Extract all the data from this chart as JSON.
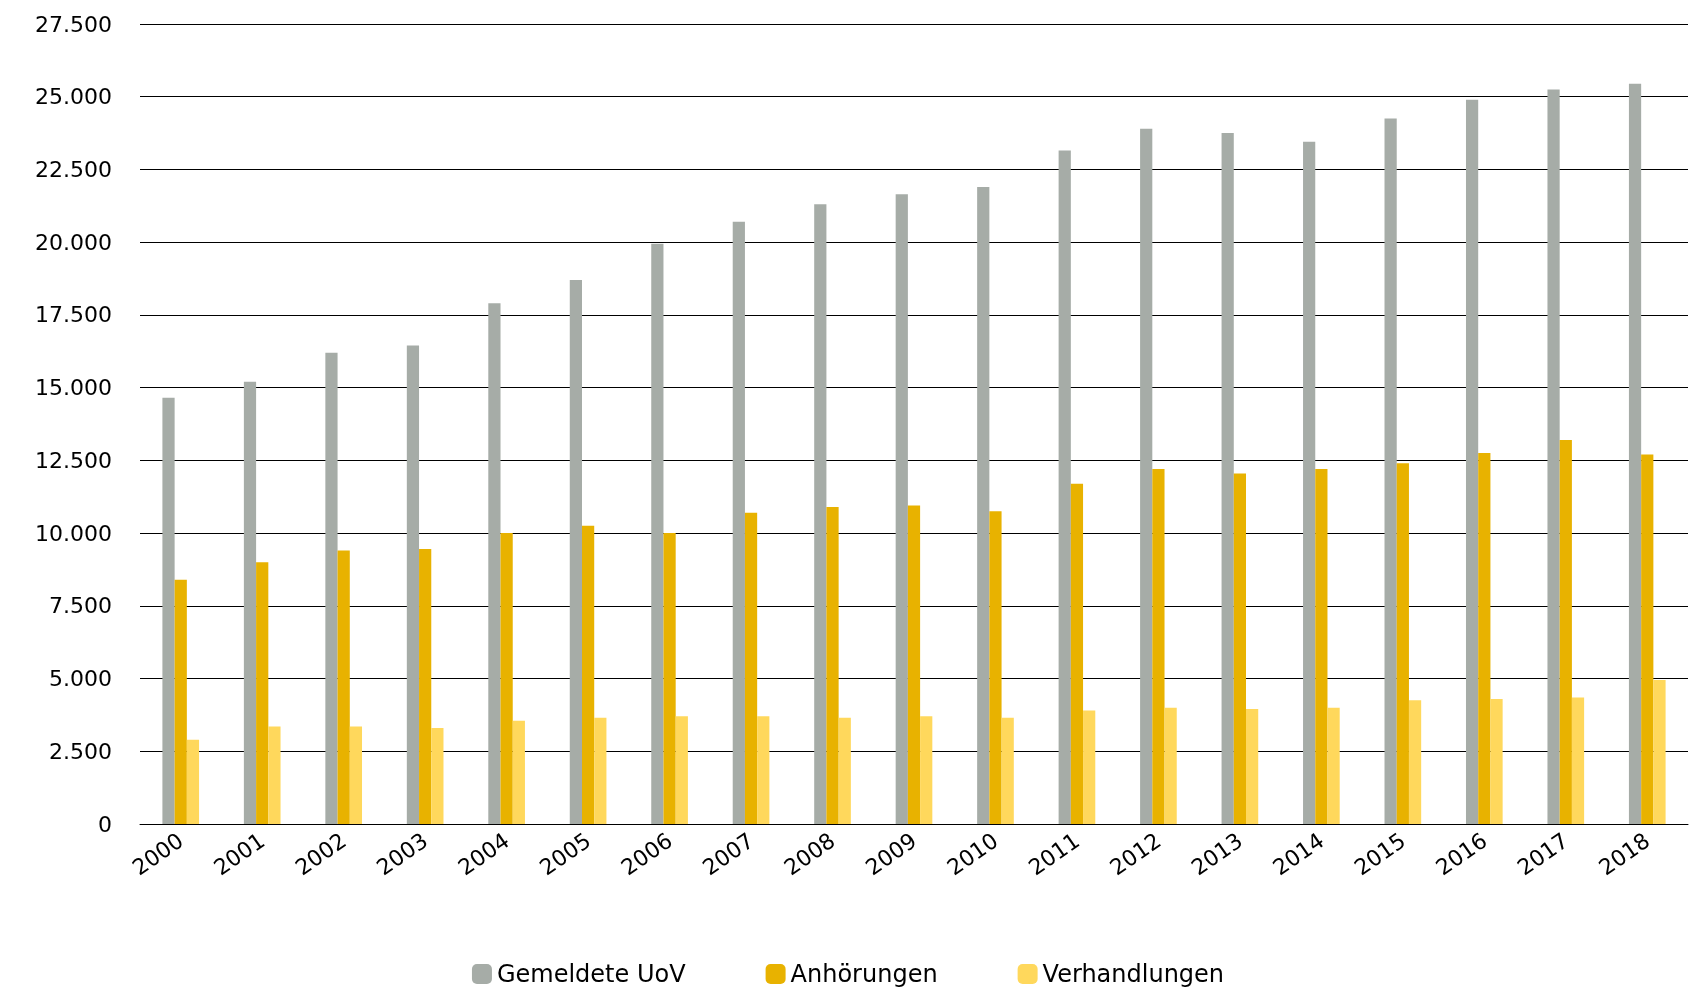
{
  "chart_data": {
    "type": "bar",
    "categories": [
      "2000",
      "2001",
      "2002",
      "2003",
      "2004",
      "2005",
      "2006",
      "2007",
      "2008",
      "2009",
      "2010",
      "2011",
      "2012",
      "2013",
      "2014",
      "2015",
      "2016",
      "2017",
      "2018"
    ],
    "series": [
      {
        "name": "Gemeldete UoV",
        "color": "#a6aca7",
        "values": [
          14650,
          15200,
          16200,
          16450,
          17900,
          18700,
          19950,
          20700,
          21300,
          21650,
          21900,
          23150,
          23900,
          23750,
          23450,
          24250,
          24900,
          25250,
          25450
        ]
      },
      {
        "name": "Anhörungen",
        "color": "#e8b200",
        "values": [
          8400,
          9000,
          9400,
          9450,
          10000,
          10250,
          10000,
          10700,
          10900,
          10950,
          10750,
          11700,
          12200,
          12050,
          12200,
          12400,
          12750,
          13200,
          12700
        ]
      },
      {
        "name": "Verhandlungen",
        "color": "#ffd85c",
        "values": [
          2900,
          3350,
          3350,
          3300,
          3550,
          3650,
          3700,
          3700,
          3650,
          3700,
          3650,
          3900,
          4000,
          3950,
          4000,
          4250,
          4300,
          4350,
          4950
        ]
      }
    ],
    "ylim": [
      0,
      27500
    ],
    "yticks": [
      {
        "value": 0,
        "label": "0"
      },
      {
        "value": 2500,
        "label": "2.500"
      },
      {
        "value": 5000,
        "label": "5.000"
      },
      {
        "value": 7500,
        "label": "7.500"
      },
      {
        "value": 10000,
        "label": "10.000"
      },
      {
        "value": 12500,
        "label": "12.500"
      },
      {
        "value": 15000,
        "label": "15.000"
      },
      {
        "value": 17500,
        "label": "17.500"
      },
      {
        "value": 20000,
        "label": "20.000"
      },
      {
        "value": 22500,
        "label": "22.500"
      },
      {
        "value": 25000,
        "label": "25.000"
      },
      {
        "value": 27500,
        "label": "27.500"
      }
    ],
    "grid": "y",
    "legend": "bottom"
  }
}
